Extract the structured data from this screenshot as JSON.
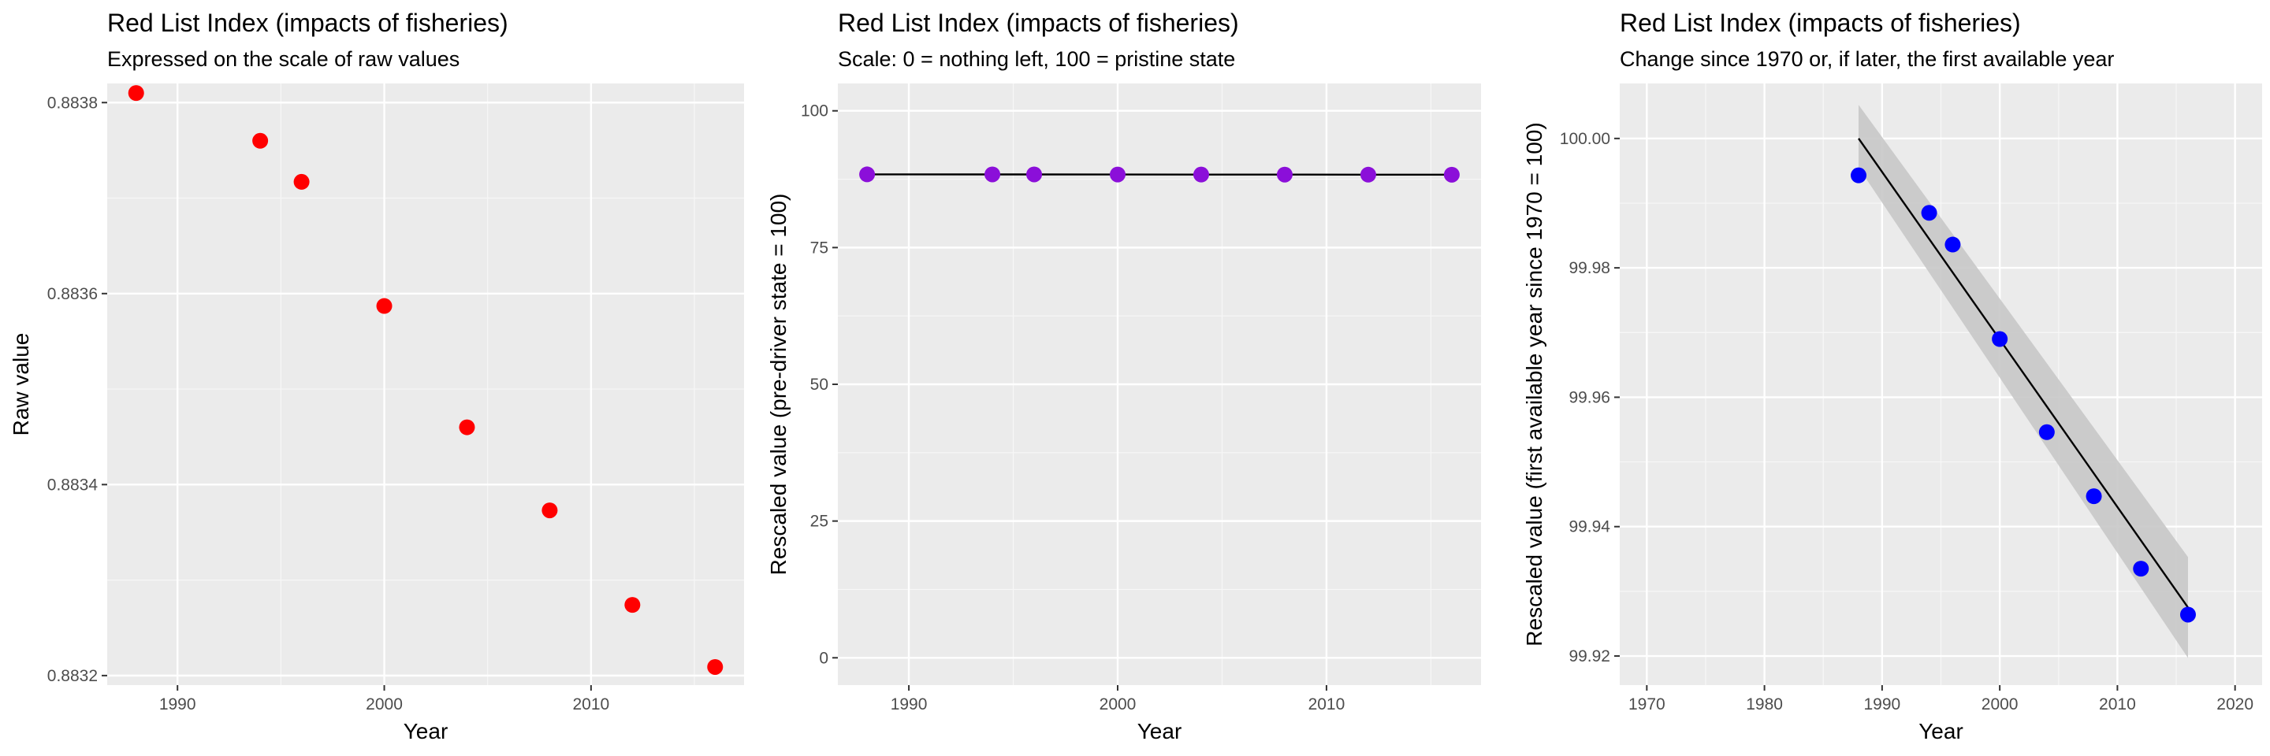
{
  "chart_data": [
    {
      "type": "scatter",
      "title": "Red List Index (impacts of fisheries)",
      "subtitle": "Expressed on the scale of raw values",
      "xlabel": "Year",
      "ylabel": "Raw value",
      "xlim": [
        1986.6,
        2017.4
      ],
      "ylim": [
        0.88319,
        0.88382
      ],
      "xticks": [
        1990,
        2000,
        2010
      ],
      "yticks": [
        0.8832,
        0.8834,
        0.8836,
        0.8838
      ],
      "ytick_labels": [
        "0.8832",
        "0.8834",
        "0.8836",
        "0.8838"
      ],
      "grid": true,
      "point_color": "#ff0000",
      "series": [
        {
          "x": [
            1988,
            1994,
            1996,
            2000,
            2004,
            2008,
            2012,
            2016
          ],
          "y": [
            0.88381,
            0.88376,
            0.883717,
            0.883587,
            0.88346,
            0.883373,
            0.883274,
            0.883209
          ]
        }
      ]
    },
    {
      "type": "line",
      "title": "Red List Index (impacts of fisheries)",
      "subtitle": "Scale: 0 = nothing left, 100 = pristine state",
      "xlabel": "Year",
      "ylabel": "Rescaled value (pre-driver state = 100)",
      "xlim": [
        1986.6,
        2017.4
      ],
      "ylim": [
        -5,
        105
      ],
      "xticks": [
        1990,
        2000,
        2010
      ],
      "yticks": [
        0,
        25,
        50,
        75,
        100
      ],
      "ytick_labels": [
        "0",
        "25",
        "50",
        "75",
        "100"
      ],
      "grid": true,
      "point_color": "#8b0fd9",
      "line_color": "#000000",
      "series": [
        {
          "x": [
            1988,
            1994,
            1996,
            2000,
            2004,
            2008,
            2012,
            2016
          ],
          "y": [
            88.38,
            88.376,
            88.372,
            88.359,
            88.346,
            88.337,
            88.327,
            88.321
          ]
        }
      ]
    },
    {
      "type": "scatter",
      "title": "Red List Index (impacts of fisheries)",
      "subtitle": "Change since 1970 or, if later, the first available year",
      "xlabel": "Year",
      "ylabel": "Rescaled value (first available year since 1970 = 100)",
      "xlim": [
        1967.7,
        2022.3
      ],
      "ylim": [
        99.9155,
        100.0085
      ],
      "xticks": [
        1970,
        1980,
        1990,
        2000,
        2010,
        2020
      ],
      "yticks": [
        99.92,
        99.94,
        99.96,
        99.98,
        100.0
      ],
      "ytick_labels": [
        "99.92",
        "99.94",
        "99.96",
        "99.98",
        "100.00"
      ],
      "grid": true,
      "point_color": "#0000ff",
      "line_color": "#000000",
      "band_color": "#c8c8c8",
      "series": [
        {
          "x": [
            1988,
            1994,
            1996,
            2000,
            2004,
            2008,
            2012,
            2016
          ],
          "y": [
            99.9943,
            99.9885,
            99.9836,
            99.969,
            99.9546,
            99.9447,
            99.9335,
            99.9264
          ]
        }
      ],
      "trend": {
        "x": [
          1988,
          2016
        ],
        "y": [
          100.0,
          99.9275
        ],
        "band_lower": [
          99.9955,
          99.9197
        ],
        "band_upper": [
          100.0052,
          99.9353
        ]
      }
    }
  ]
}
